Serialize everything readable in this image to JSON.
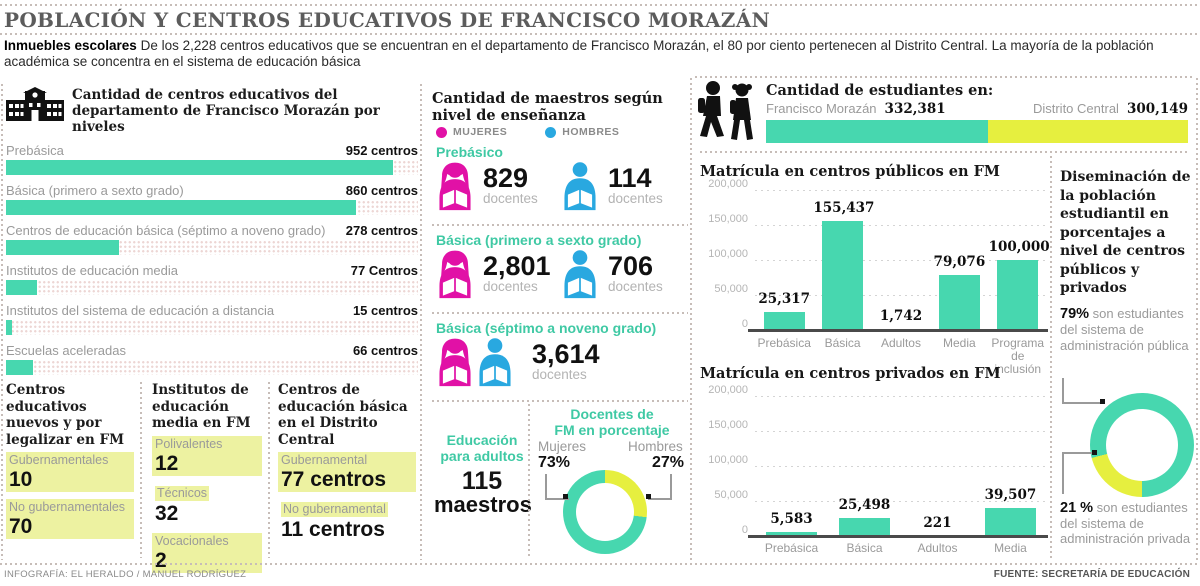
{
  "colors": {
    "teal": "#47D7AF",
    "teal_text": "#3FC9A4",
    "yellow": "#E6EF3F",
    "highlight": "#EDF2A1",
    "magenta": "#E111A6",
    "blue": "#29A8E0",
    "dotted_rule": "#C7BDB8"
  },
  "header": {
    "title": "POBLACIÓN Y CENTROS EDUCATIVOS DE FRANCISCO MORAZÁN",
    "intro_lead": "Inmuebles escolares",
    "intro_rest": "De los 2,228 centros educativos que se encuentran en el departamento de Francisco Morazán, el 80 por ciento pertenecen al Distrito Central. La mayoría de la población académica se concentra en el sistema de educación básica"
  },
  "footer": {
    "credit": "INFOGRAFÍA: EL HERALDO / MANUEL RODRÍGUEZ",
    "source": "FUENTE: SECRETARÍA DE EDUCACIÓN"
  },
  "centers": {
    "title_line1": "Cantidad de centros educativos del",
    "title_line2": "departamento de Francisco Morazán por niveles"
  },
  "teachers": {
    "title_line1": "Cantidad de maestros según",
    "title_line2": "nivel de enseñanza",
    "legend": [
      {
        "label": "MUJERES"
      },
      {
        "label": "HOMBRES"
      }
    ],
    "groups": [
      {
        "header": "Prebásico",
        "women": "829",
        "women_unit": "docentes",
        "men": "114",
        "men_unit": "docentes"
      },
      {
        "header": "Básica (primero a sexto grado)",
        "women": "2,801",
        "women_unit": "docentes",
        "men": "706",
        "men_unit": "docentes"
      },
      {
        "header": "Básica (séptimo a noveno grado)",
        "total": "3,614",
        "total_unit": "docentes"
      }
    ],
    "adults": {
      "line1": "Educación",
      "line2": "para adultos",
      "value": "115",
      "unit": "maestros"
    },
    "pct": {
      "title_line1": "Docentes de",
      "title_line2": "FM en porcentaje",
      "left_label": "Mujeres",
      "left_value": "73%",
      "right_label": "Hombres",
      "right_value": "27%"
    }
  },
  "boxes": [
    {
      "title": "Centros educativos nuevos y por legalizar en FM",
      "items": [
        {
          "label": "Gubernamentales",
          "value": "10",
          "hl": "full"
        },
        {
          "label": "No gubernamentales",
          "value": "70",
          "hl": "full"
        }
      ]
    },
    {
      "title": "Institutos de educación media en FM",
      "items": [
        {
          "label": "Polivalentes",
          "value": "12",
          "hl": "full"
        },
        {
          "label": "Técnicos",
          "value": "32",
          "hl": "label"
        },
        {
          "label": "Vocacionales",
          "value": "2",
          "hl": "full"
        }
      ]
    },
    {
      "title": "Centros de educación básica en el Distrito Central",
      "items": [
        {
          "label": "Gubernamental",
          "value": "77 centros",
          "hl": "full"
        },
        {
          "label": "No gubernamental",
          "value": "11 centros",
          "hl": "label"
        }
      ]
    }
  ],
  "students": {
    "title": "Cantidad de estudiantes en:",
    "fm_label": "Francisco Morazán",
    "fm_value": "332,381",
    "dc_label": "Distrito Central",
    "dc_value": "300,149"
  },
  "dissemination": {
    "title": "Diseminación de la población estudiantil en porcentajes a nivel de centros públicos y privados",
    "public_pct": "79%",
    "public_text": " son estudiantes del sistema de administración pública",
    "private_pct": "21 %",
    "private_text": " son estudiantes del sistema de administración privada"
  },
  "chart_data": [
    {
      "id": "centers",
      "type": "bar",
      "orientation": "horizontal",
      "title": "Cantidad de centros educativos del departamento de Francisco Morazán por niveles",
      "categories": [
        "Prebásica",
        "Básica (primero a sexto grado)",
        "Centros de educación básica (séptimo a noveno grado)",
        "Institutos de educación media",
        "Institutos del sistema de educación a distancia",
        "Escuelas aceleradas"
      ],
      "values": [
        952,
        860,
        278,
        77,
        15,
        66
      ],
      "value_labels": [
        "952 centros",
        "860 centros",
        "278 centros",
        "77 Centros",
        "15 centros",
        "66 centros"
      ],
      "xlim": [
        0,
        952
      ],
      "grid": false
    },
    {
      "id": "public",
      "type": "bar",
      "title": "Matrícula en centros públicos en FM",
      "categories": [
        "Prebásica",
        "Básica",
        "Adultos",
        "Media",
        "Programa de inclusión"
      ],
      "values": [
        25317,
        155437,
        1742,
        79076,
        100000
      ],
      "value_labels": [
        "25,317",
        "155,437",
        "1,742",
        "79,076",
        "100,000"
      ],
      "ylim": [
        0,
        200000
      ],
      "ytick_labels": [
        "200,000",
        "150,000",
        "100,000",
        "50,000",
        "0"
      ],
      "grid": true
    },
    {
      "id": "private",
      "type": "bar",
      "title": "Matrícula en centros privados en FM",
      "categories": [
        "Prebásica",
        "Básica",
        "Adultos",
        "Media"
      ],
      "values": [
        5583,
        25498,
        221,
        39507
      ],
      "value_labels": [
        "5,583",
        "25,498",
        "221",
        "39,507"
      ],
      "ylim": [
        0,
        200000
      ],
      "ytick_labels": [
        "200,000",
        "150,000",
        "100,000",
        "50,000",
        "0"
      ],
      "grid": true
    },
    {
      "id": "teachers_pct",
      "type": "pie",
      "title": "Docentes de FM en porcentaje",
      "slices": [
        {
          "label": "Mujeres",
          "pct": 73,
          "color_key": "teal"
        },
        {
          "label": "Hombres",
          "pct": 27,
          "color_key": "yellow"
        }
      ],
      "start_deg": 0,
      "first_slice_key": "yellow",
      "first_pct": 27
    },
    {
      "id": "students_split",
      "type": "stacked-bar",
      "title": "Cantidad de estudiantes en:",
      "segments": [
        {
          "label": "Francisco Morazán",
          "value": 332381,
          "color_key": "teal"
        },
        {
          "label": "Distrito Central",
          "value": 300149,
          "color_key": "yellow"
        }
      ]
    },
    {
      "id": "admin_split",
      "type": "pie",
      "title": "Diseminación de la población estudiantil en porcentajes",
      "slices": [
        {
          "label": "pública",
          "pct": 79,
          "color_key": "teal"
        },
        {
          "label": "privada",
          "pct": 21,
          "color_key": "yellow"
        }
      ],
      "start_deg": 180,
      "first_slice_key": "yellow",
      "first_pct": 21
    }
  ]
}
